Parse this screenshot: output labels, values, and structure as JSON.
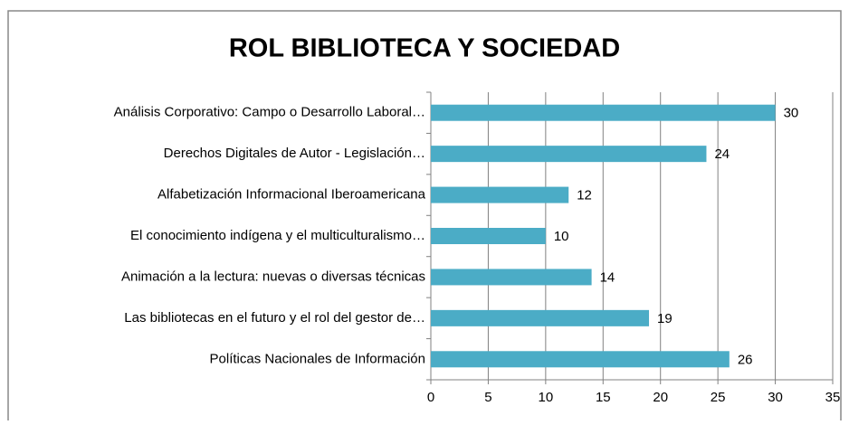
{
  "chart_data": {
    "type": "bar",
    "orientation": "horizontal",
    "title": "ROL BIBLIOTECA Y SOCIEDAD",
    "categories": [
      "Análisis Corporativo: Campo o Desarrollo Laboral…",
      "Derechos Digitales de Autor - Legislación…",
      "Alfabetización Informacional Iberoamericana",
      "El conocimiento indígena y el multiculturalismo…",
      "Animación a la lectura: nuevas o diversas técnicas",
      "Las bibliotecas en el futuro y el rol del gestor de…",
      "Políticas Nacionales de Información"
    ],
    "values": [
      30,
      24,
      12,
      10,
      14,
      19,
      26
    ],
    "color": "#4bacc6",
    "xlim": [
      0,
      35
    ],
    "xticks": [
      0,
      5,
      10,
      15,
      20,
      25,
      30,
      35
    ],
    "grid": true
  }
}
